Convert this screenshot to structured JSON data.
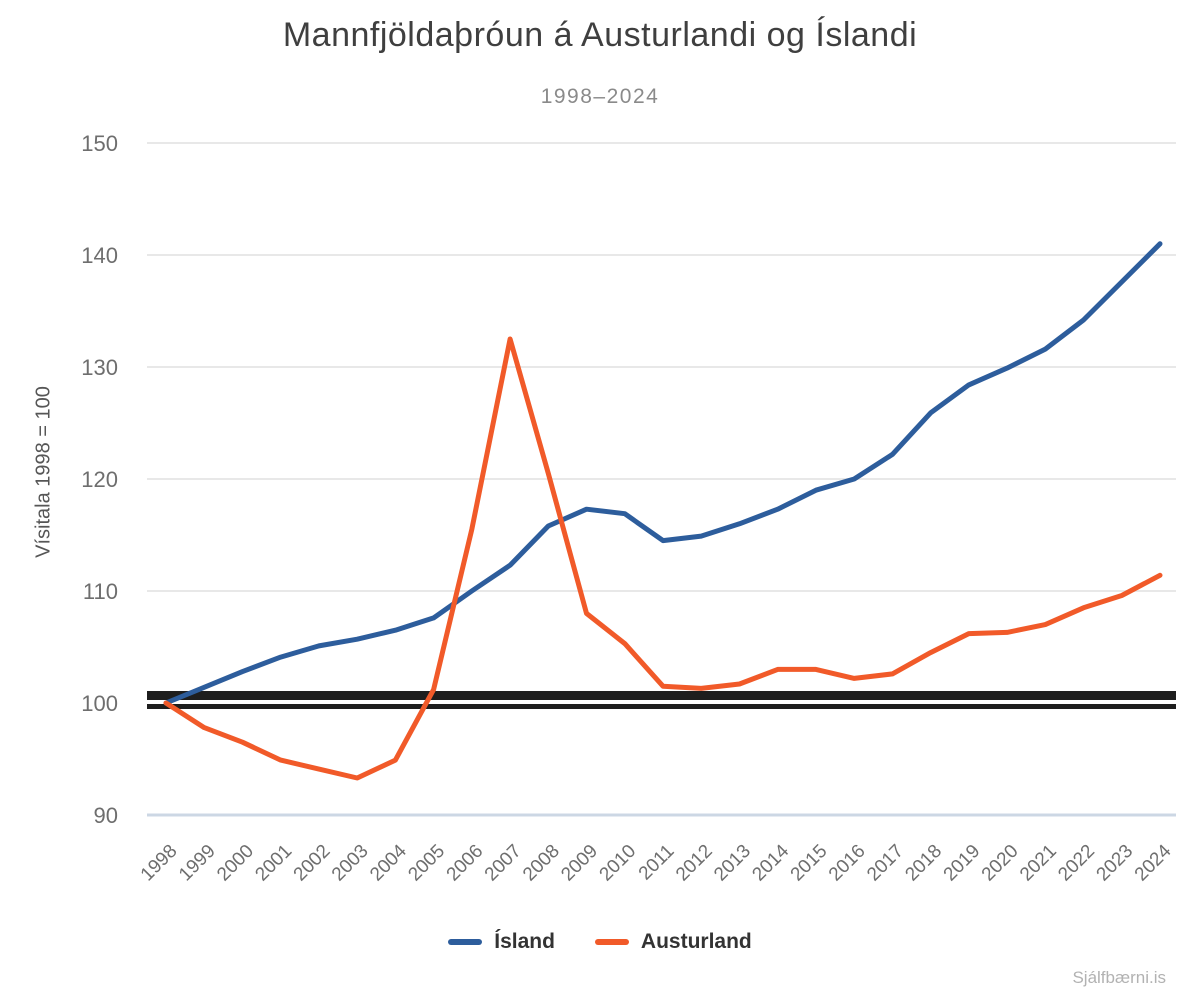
{
  "page": {
    "watermark": "Sjálfbærni.is"
  },
  "chart_data": {
    "type": "line",
    "title": "Mannfjöldaþróun á Austurlandi og Íslandi",
    "subtitle": "1998–2024",
    "ylabel": "Vísitala 1998 = 100",
    "xlabel": "",
    "x": [
      1998,
      1999,
      2000,
      2001,
      2002,
      2003,
      2004,
      2005,
      2006,
      2007,
      2008,
      2009,
      2010,
      2011,
      2012,
      2013,
      2014,
      2015,
      2016,
      2017,
      2018,
      2019,
      2020,
      2021,
      2022,
      2023,
      2024
    ],
    "series": [
      {
        "name": "Ísland",
        "color": "#2d5d9c",
        "values": [
          100,
          101.4,
          102.8,
          104.1,
          105.1,
          105.7,
          106.5,
          107.6,
          110,
          112.3,
          115.8,
          117.3,
          116.9,
          114.5,
          114.9,
          116,
          117.3,
          119,
          120,
          122.2,
          125.9,
          128.4,
          129.9,
          131.6,
          134.2,
          137.6,
          141
        ]
      },
      {
        "name": "Austurland",
        "color": "#f15a29",
        "values": [
          100,
          97.8,
          96.5,
          94.9,
          94.1,
          93.3,
          94.9,
          101.2,
          115.5,
          132.5,
          120.5,
          108,
          105.3,
          101.5,
          101.3,
          101.7,
          103,
          103,
          102.2,
          102.6,
          104.5,
          106.2,
          106.3,
          107,
          108.5,
          109.6,
          111.4
        ]
      }
    ],
    "ylim": [
      90,
      150
    ],
    "yticks": [
      90,
      100,
      110,
      120,
      130,
      140,
      150
    ],
    "grid": true,
    "reference_line": 100,
    "legend_position": "bottom",
    "colors": {
      "gridline": "#e8e8e8",
      "baseline": "#ccd7e4",
      "reference": "#1e1e1e",
      "tick_text": "#6e6e6e"
    }
  }
}
